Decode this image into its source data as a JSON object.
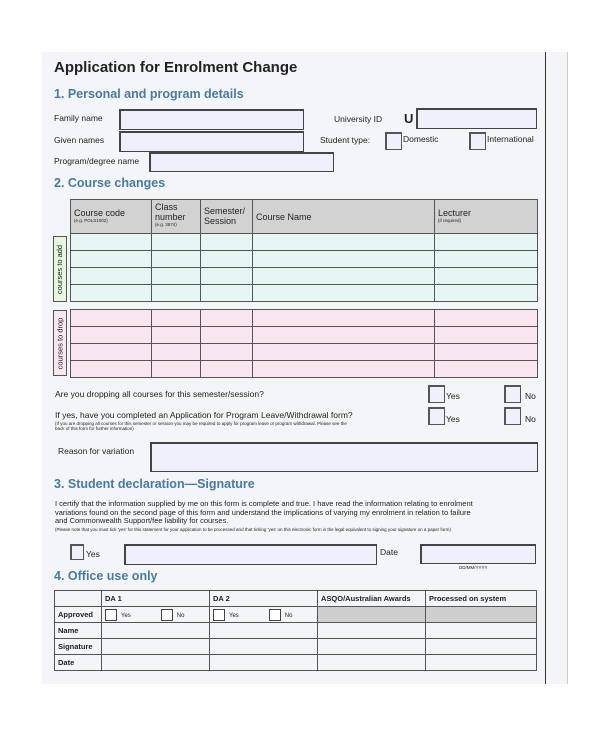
{
  "title": "Application for Enrolment Change",
  "s1": {
    "heading": "1.   Personal and program details",
    "family_name": "Family name",
    "given_names": "Given names",
    "program": "Program/degree name",
    "university_id": "University ID",
    "id_prefix": "U",
    "student_type": "Student type:",
    "domestic": "Domestic",
    "international": "International"
  },
  "s2": {
    "heading": "2.   Course changes",
    "columns": [
      {
        "label": "Course code",
        "hint": "(e.g. POLS1002)"
      },
      {
        "label": "Class number",
        "hint": "(e.g. 3574)"
      },
      {
        "label": "Semester/ Session",
        "hint": ""
      },
      {
        "label": "Course Name",
        "hint": ""
      },
      {
        "label": "Lecturer",
        "hint": "(if required)"
      }
    ],
    "add_label": "courses to add",
    "drop_label": "courses to drop",
    "q1": "Are you dropping all courses for this semester/session?",
    "q2": "If yes, have you completed an Application for Program Leave/Withdrawal form?",
    "q2_note": "(If you are dropping all courses for this semester or session you may be required to apply for program leave or program withdrawal. Please see the back of this form for further information)",
    "yes": "Yes",
    "no": "No",
    "reason": "Reason for variation"
  },
  "s3": {
    "heading": "3.   Student declaration—Signature",
    "text": "I certify that the information supplied by me on this form is complete and true.  I have read the information relating to enrolment variations found on the second page of this form and understand the implications of varying my enrolment in relation to failure and Commonwealth Support/fee liability for courses.",
    "note": "(Please note that you must tick 'yes' for this statement for your application to be processed and that ticking 'yes' on this electronic form is the legal equivalent to signing your signature on a paper form)",
    "yes": "Yes",
    "date": "Date",
    "date_format": "DD/MM/YYYY"
  },
  "s4": {
    "heading": "4.   Office use only",
    "columns": [
      "DA 1",
      "DA 2",
      "ASQO/Australian Awards",
      "Processed on system"
    ],
    "rows": [
      "Approved",
      "Name",
      "Signature",
      "Date"
    ],
    "yes": "Yes",
    "no": "No"
  }
}
